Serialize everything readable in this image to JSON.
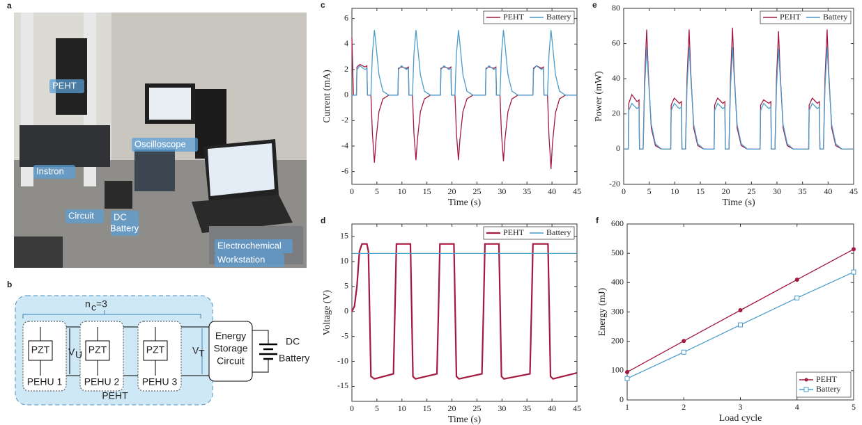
{
  "panel_a": {
    "label": "a",
    "tags": [
      "PEHT",
      "Instron",
      "Oscilloscope",
      "Circuit",
      "DC",
      "Battery",
      "Electrochemical",
      "Workstation"
    ]
  },
  "panel_b": {
    "label": "b",
    "nc": {
      "base": "n",
      "sub": "c",
      "rest": "=3"
    },
    "pzt": [
      "PZT",
      "PZT",
      "PZT"
    ],
    "vu": {
      "base": "V",
      "sub": "U"
    },
    "vt": {
      "base": "V",
      "sub": "T"
    },
    "units": [
      "PEHU  1",
      "PEHU  2",
      "PEHU  3"
    ],
    "group": "PEHT",
    "circuit": [
      "Energy",
      "Storage",
      "Circuit"
    ],
    "battery": [
      "DC",
      "Battery"
    ]
  },
  "chart_data": [
    {
      "type": "line",
      "label": "c",
      "xlabel": "Time (s)",
      "ylabel": "Current (mA)",
      "xlim": [
        0,
        45
      ],
      "ylim": [
        -7,
        6.8
      ],
      "xticks": [
        0,
        5,
        10,
        15,
        20,
        25,
        30,
        35,
        40,
        45
      ],
      "yticks": [
        -6,
        -4,
        -2,
        0,
        2,
        4,
        6
      ],
      "legend": "upper right",
      "x": [
        0,
        0.3,
        0.9,
        1.0,
        1.6,
        2.6,
        3.0,
        3.1,
        3.8,
        4.1,
        4.5,
        4.8,
        5.4,
        6.2,
        7.4,
        9.2,
        9.3,
        9.9,
        10.9,
        11.3,
        11.4,
        12.1,
        12.4,
        12.8,
        13.1,
        13.7,
        14.5,
        15.7,
        17.7,
        17.8,
        18.4,
        19.4,
        19.8,
        19.9,
        20.6,
        20.9,
        21.3,
        21.6,
        22.2,
        23.0,
        24.2,
        26.7,
        26.8,
        27.4,
        28.4,
        28.8,
        28.9,
        29.6,
        29.9,
        30.3,
        30.6,
        31.2,
        32.0,
        33.2,
        36.2,
        36.3,
        36.9,
        37.9,
        38.3,
        38.4,
        39.1,
        39.4,
        39.8,
        40.1,
        40.7,
        41.5,
        42.7,
        45
      ],
      "series": [
        {
          "name": "PEHT",
          "color": "#a3193f",
          "values": [
            4.5,
            0,
            0,
            2.2,
            2.4,
            2.2,
            2.3,
            0,
            0,
            -3,
            -5.3,
            -3.6,
            -1.3,
            -0.3,
            0,
            0,
            2.1,
            2.2,
            2.1,
            2.2,
            0,
            0,
            -3,
            -5.1,
            -3.5,
            -1.3,
            -0.3,
            0,
            0,
            2.1,
            2.2,
            2.1,
            2.2,
            0,
            0,
            -3,
            -5.1,
            -3.5,
            -1.3,
            -0.3,
            0,
            0,
            2.1,
            2.2,
            2.1,
            2.2,
            0,
            0,
            -3,
            -5.2,
            -3.5,
            -1.3,
            -0.3,
            0,
            0,
            2.1,
            2.3,
            2.1,
            2.2,
            0,
            0,
            -3.2,
            -5.8,
            -3.8,
            -1.4,
            -0.3,
            0,
            0
          ]
        },
        {
          "name": "Battery",
          "color": "#4b9ccb",
          "values": [
            0,
            0,
            0,
            2.0,
            2.3,
            2.0,
            2.1,
            0,
            0,
            3.2,
            5.1,
            4.0,
            1.6,
            0.3,
            0,
            0,
            2.0,
            2.3,
            2.0,
            2.1,
            0,
            0,
            3.2,
            5.1,
            4.0,
            1.6,
            0.3,
            0,
            0,
            2.0,
            2.3,
            2.0,
            2.1,
            0,
            0,
            3.2,
            5.1,
            4.0,
            1.6,
            0.3,
            0,
            0,
            2.0,
            2.3,
            2.0,
            2.1,
            0,
            0,
            3.2,
            5.1,
            4.0,
            1.6,
            0.3,
            0,
            0,
            2.0,
            2.3,
            2.0,
            2.1,
            0,
            0,
            3.2,
            5.1,
            4.0,
            1.6,
            0.3,
            0,
            0
          ]
        }
      ]
    },
    {
      "type": "line",
      "label": "d",
      "xlabel": "Time (s)",
      "ylabel": "Voltage (V)",
      "xlim": [
        0,
        45
      ],
      "ylim": [
        -18,
        17.5
      ],
      "xticks": [
        0,
        5,
        10,
        15,
        20,
        25,
        30,
        35,
        40,
        45
      ],
      "yticks": [
        -15,
        -10,
        -5,
        0,
        5,
        10,
        15
      ],
      "legend": "upper right",
      "series": [
        {
          "name": "PEHT",
          "color": "#a3193f",
          "width": 2.2,
          "x": [
            0,
            0.5,
            1,
            1.5,
            2,
            3,
            3.3,
            3.8,
            4.5,
            8.3,
            8.6,
            8.9,
            11.7,
            12.2,
            12.7,
            17,
            17.3,
            17.6,
            20.4,
            20.9,
            21.4,
            26,
            26.3,
            26.6,
            29.4,
            29.9,
            30.4,
            35.6,
            35.9,
            36.2,
            39.2,
            39.7,
            40.2,
            45
          ],
          "values": [
            0,
            1,
            5,
            12,
            13.5,
            13.5,
            12,
            -13,
            -13.5,
            -12.5,
            0,
            13.5,
            13.5,
            -13,
            -13.5,
            -12.5,
            0,
            13.5,
            13.5,
            -13,
            -13.5,
            -12.5,
            0,
            13.5,
            13.5,
            -13,
            -13.5,
            -12.5,
            0,
            13.5,
            13.5,
            -13,
            -13.5,
            -12.3
          ]
        },
        {
          "name": "Battery",
          "color": "#4b9ccb",
          "x": [
            0,
            45
          ],
          "values": [
            11.6,
            11.6
          ]
        }
      ]
    },
    {
      "type": "line",
      "label": "e",
      "xlabel": "Time (s)",
      "ylabel": "Power (mW)",
      "xlim": [
        0,
        45
      ],
      "ylim": [
        -20,
        80
      ],
      "xticks": [
        0,
        5,
        10,
        15,
        20,
        25,
        30,
        35,
        40,
        45
      ],
      "yticks": [
        -20,
        0,
        20,
        40,
        60,
        80
      ],
      "legend": "upper right",
      "x": [
        0,
        0.3,
        0.9,
        1.0,
        1.6,
        2.6,
        3.0,
        3.1,
        3.8,
        4.1,
        4.5,
        4.8,
        5.4,
        6.2,
        7.4,
        9.2,
        9.3,
        9.9,
        10.9,
        11.3,
        11.4,
        12.1,
        12.4,
        12.8,
        13.1,
        13.7,
        14.5,
        15.7,
        17.7,
        17.8,
        18.4,
        19.4,
        19.8,
        19.9,
        20.6,
        20.9,
        21.3,
        21.6,
        22.2,
        23.0,
        24.2,
        26.7,
        26.8,
        27.4,
        28.4,
        28.8,
        28.9,
        29.6,
        29.9,
        30.3,
        30.6,
        31.2,
        32.0,
        33.2,
        36.2,
        36.3,
        36.9,
        37.9,
        38.3,
        38.4,
        39.1,
        39.4,
        39.8,
        40.1,
        40.7,
        41.5,
        42.7,
        45
      ],
      "series": [
        {
          "name": "PEHT",
          "color": "#a3193f",
          "values": [
            0,
            0,
            0,
            26,
            31,
            27,
            28,
            0,
            0,
            40,
            68,
            45,
            12,
            2,
            0,
            0,
            25,
            29,
            26,
            27,
            0,
            0,
            40,
            68,
            45,
            12,
            2,
            0,
            0,
            25,
            29,
            26,
            27,
            0,
            0,
            40,
            69,
            45,
            12,
            2,
            0,
            0,
            25,
            28,
            26,
            27,
            0,
            0,
            40,
            67,
            45,
            12,
            2,
            0,
            0,
            25,
            29,
            26,
            27,
            0,
            0,
            40,
            68,
            45,
            12,
            2,
            0,
            0
          ]
        },
        {
          "name": "Battery",
          "color": "#4b9ccb",
          "values": [
            0,
            0,
            0,
            22,
            26,
            23,
            24,
            0,
            0,
            35,
            58,
            42,
            14,
            3,
            0,
            0,
            22,
            26,
            23,
            24,
            0,
            0,
            35,
            58,
            42,
            14,
            3,
            0,
            0,
            22,
            26,
            23,
            24,
            0,
            0,
            35,
            58,
            42,
            14,
            3,
            0,
            0,
            22,
            26,
            23,
            24,
            0,
            0,
            35,
            57,
            42,
            14,
            3,
            0,
            0,
            22,
            26,
            23,
            24,
            0,
            0,
            35,
            58,
            42,
            14,
            3,
            0,
            0
          ]
        }
      ]
    },
    {
      "type": "line",
      "label": "f",
      "xlabel": "Load cycle",
      "ylabel": "Energy (mJ)",
      "xlim": [
        1,
        5
      ],
      "ylim": [
        0,
        600
      ],
      "xticks": [
        1,
        2,
        3,
        4,
        5
      ],
      "yticks": [
        0,
        100,
        200,
        300,
        400,
        500,
        600
      ],
      "legend": "lower right",
      "grid": false,
      "x": [
        1,
        2,
        3,
        4,
        5
      ],
      "series": [
        {
          "name": "PEHT",
          "color": "#a3193f",
          "marker": "circle",
          "values": [
            95,
            201,
            306,
            410,
            514
          ]
        },
        {
          "name": "Battery",
          "color": "#4b9ccb",
          "marker": "square",
          "values": [
            73,
            163,
            256,
            348,
            436
          ]
        }
      ]
    }
  ]
}
